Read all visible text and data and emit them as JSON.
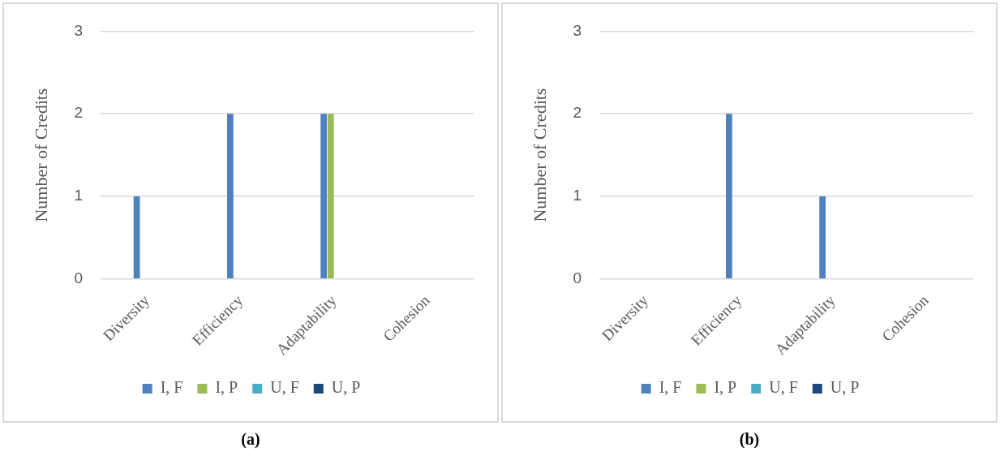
{
  "chart_data": [
    {
      "type": "bar",
      "ylabel": "Number of Credits",
      "categories": [
        "Diversity",
        "Efficiency",
        "Adaptability",
        "Cohesion"
      ],
      "series": [
        {
          "name": "I, F",
          "color": "#4f81bd",
          "values": [
            1,
            2,
            2,
            0
          ]
        },
        {
          "name": "I, P",
          "color": "#9bbb59",
          "values": [
            0,
            0,
            2,
            0
          ]
        },
        {
          "name": "U, F",
          "color": "#4bacc6",
          "values": [
            0,
            0,
            0,
            0
          ]
        },
        {
          "name": "U, P",
          "color": "#1f497d",
          "values": [
            0,
            0,
            0,
            0
          ]
        }
      ],
      "ylim": [
        0,
        3
      ],
      "yticks": [
        0,
        1,
        2,
        3
      ],
      "grid": "y",
      "legend": "bottom",
      "annotations": [
        "(a)"
      ]
    },
    {
      "type": "bar",
      "ylabel": "Number of Credits",
      "categories": [
        "Diversity",
        "Efficiency",
        "Adaptability",
        "Cohesion"
      ],
      "series": [
        {
          "name": "I, F",
          "color": "#4f81bd",
          "values": [
            0,
            2,
            1,
            0
          ]
        },
        {
          "name": "I, P",
          "color": "#9bbb59",
          "values": [
            0,
            0,
            0,
            0
          ]
        },
        {
          "name": "U, F",
          "color": "#4bacc6",
          "values": [
            0,
            0,
            0,
            0
          ]
        },
        {
          "name": "U, P",
          "color": "#1f497d",
          "values": [
            0,
            0,
            0,
            0
          ]
        }
      ],
      "ylim": [
        0,
        3
      ],
      "yticks": [
        0,
        1,
        2,
        3
      ],
      "grid": "y",
      "legend": "bottom",
      "annotations": [
        "(b)"
      ]
    }
  ]
}
